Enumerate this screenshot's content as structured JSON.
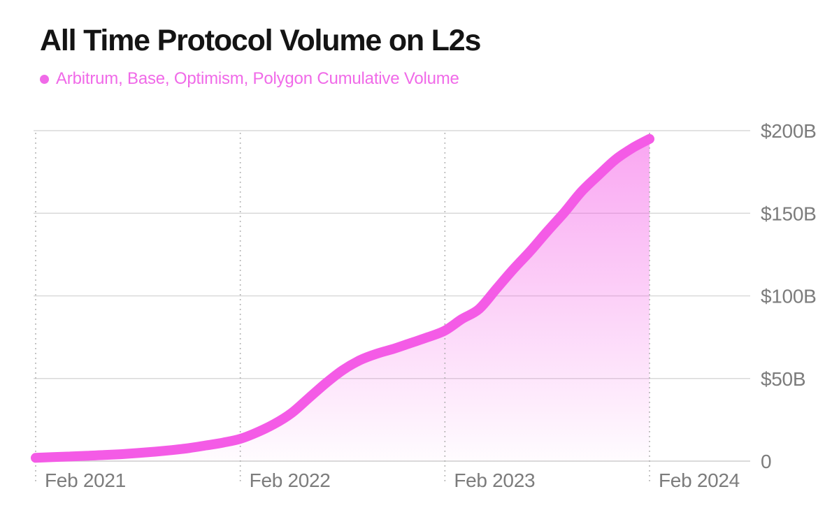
{
  "title": "All Time Protocol Volume on L2s",
  "legend": {
    "label": "Arbitrum, Base, Optimism, Polygon Cumulative Volume"
  },
  "colors": {
    "accent": "#F45BE6",
    "legend_text": "#F06AE8",
    "title_text": "#141414",
    "axis_text": "#7C7C7C",
    "gridline": "#D9D9D9",
    "zero_line": "#CECECE",
    "dotted_tick": "#ABABAB",
    "background": "#FFFFFF"
  },
  "chart_data": {
    "type": "area",
    "title": "All Time Protocol Volume on L2s",
    "series": [
      {
        "name": "Arbitrum, Base, Optimism, Polygon Cumulative Volume",
        "values": [
          2,
          2.4,
          2.8,
          3.2,
          3.7,
          4.2,
          4.9,
          5.7,
          6.7,
          7.9,
          9.5,
          11.2,
          13.5,
          17.5,
          22.5,
          29,
          38,
          47,
          55,
          61,
          65,
          68,
          71.5,
          75,
          79,
          86,
          92,
          104,
          116,
          127,
          139,
          150.5,
          163,
          173,
          182.5,
          189.5,
          195
        ]
      }
    ],
    "x": [
      "Feb 2021",
      "Mar 2021",
      "Apr 2021",
      "May 2021",
      "Jun 2021",
      "Jul 2021",
      "Aug 2021",
      "Sep 2021",
      "Oct 2021",
      "Nov 2021",
      "Dec 2021",
      "Jan 2022",
      "Feb 2022",
      "Mar 2022",
      "Apr 2022",
      "May 2022",
      "Jun 2022",
      "Jul 2022",
      "Aug 2022",
      "Sep 2022",
      "Oct 2022",
      "Nov 2022",
      "Dec 2022",
      "Jan 2023",
      "Feb 2023",
      "Mar 2023",
      "Apr 2023",
      "May 2023",
      "Jun 2023",
      "Jul 2023",
      "Aug 2023",
      "Sep 2023",
      "Oct 2023",
      "Nov 2023",
      "Dec 2023",
      "Jan 2024",
      "Feb 2024"
    ],
    "x_ticks": [
      {
        "label": "Feb 2021",
        "month_index": 0
      },
      {
        "label": "Feb 2022",
        "month_index": 12
      },
      {
        "label": "Feb 2023",
        "month_index": 24
      },
      {
        "label": "Feb 2024",
        "month_index": 36
      }
    ],
    "y_ticks": [
      {
        "label": "$200B",
        "value": 200
      },
      {
        "label": "$150B",
        "value": 150
      },
      {
        "label": "$100B",
        "value": 100
      },
      {
        "label": "$50B",
        "value": 50
      },
      {
        "label": "0",
        "value": 0
      }
    ],
    "ylabel": "",
    "xlabel": "",
    "ylim": [
      0,
      200
    ],
    "grid": {
      "horizontal": "solid",
      "vertical": "dotted"
    },
    "legend_position": "top-left",
    "units": "USD billions"
  }
}
